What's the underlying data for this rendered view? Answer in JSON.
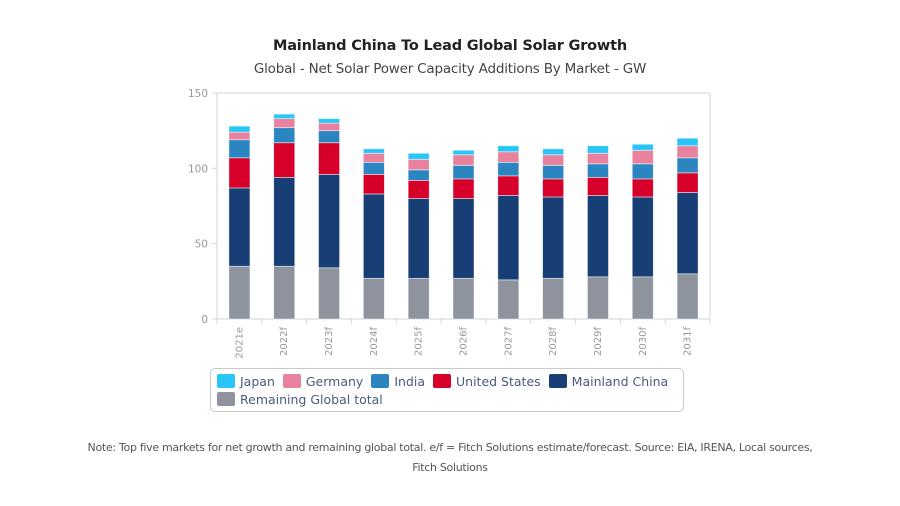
{
  "chart_data": {
    "type": "bar",
    "stacked": true,
    "title": "Mainland China To Lead Global Solar Growth",
    "subtitle": "Global - Net Solar Power Capacity Additions By Market - GW",
    "xlabel": "",
    "ylabel": "",
    "ylim": [
      0,
      150
    ],
    "yticks": [
      0,
      50,
      100,
      150
    ],
    "grid": false,
    "legend_position": "bottom",
    "categories": [
      "2021e",
      "2022f",
      "2023f",
      "2024f",
      "2025f",
      "2026f",
      "2027f",
      "2028f",
      "2029f",
      "2030f",
      "2031f"
    ],
    "series": [
      {
        "name": "Remaining Global total",
        "color": "#8e939e",
        "values": [
          35,
          35,
          34,
          27,
          27,
          27,
          26,
          27,
          28,
          28,
          30
        ]
      },
      {
        "name": "Mainland China",
        "color": "#173e75",
        "values": [
          52,
          59,
          62,
          56,
          53,
          53,
          56,
          54,
          54,
          53,
          54
        ]
      },
      {
        "name": "United States",
        "color": "#d6002a",
        "values": [
          20,
          23,
          21,
          13,
          12,
          13,
          13,
          12,
          12,
          12,
          13
        ]
      },
      {
        "name": "India",
        "color": "#2b85c0",
        "values": [
          12,
          10,
          8,
          8,
          7,
          9,
          9,
          9,
          9,
          10,
          10
        ]
      },
      {
        "name": "Germany",
        "color": "#e8819d",
        "values": [
          5,
          6,
          5,
          6,
          7,
          7,
          7,
          7,
          7,
          9,
          8
        ]
      },
      {
        "name": "Japan",
        "color": "#29c5f6",
        "values": [
          4,
          3,
          3,
          3,
          4,
          3,
          4,
          4,
          5,
          4,
          5
        ]
      }
    ],
    "legend_order": [
      "Japan",
      "Germany",
      "India",
      "United States",
      "Mainland China",
      "Remaining Global total"
    ],
    "note": "Note: Top five markets for net growth and remaining global total. e/f = Fitch Solutions estimate/forecast. Source: EIA, IRENA, Local sources,",
    "note_line2": "Fitch Solutions"
  }
}
